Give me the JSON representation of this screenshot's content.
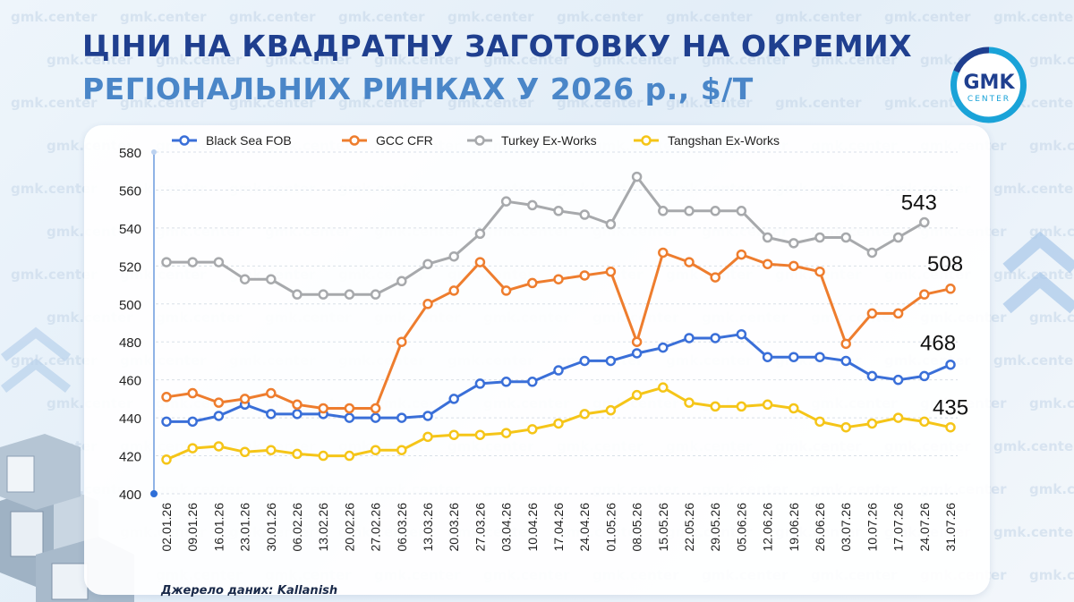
{
  "title": {
    "line1": "ЦІНИ НА КВАДРАТНУ ЗАГОТОВКУ НА ОКРЕМИХ",
    "line2": "РЕГІОНАЛЬНИХ РИНКАХ У 2026 р., $/Т"
  },
  "logo": {
    "line1": "GMK",
    "line2": "CENTER",
    "ring_color": "#1aa3d8",
    "text_color": "#1f3f8f"
  },
  "watermark": "gmk.center",
  "source": "Джерело даних: Kallanish",
  "chart_data": {
    "type": "line",
    "x": [
      "02.01.26",
      "09.01.26",
      "16.01.26",
      "23.01.26",
      "30.01.26",
      "06.02.26",
      "13.02.26",
      "20.02.26",
      "27.02.26",
      "06.03.26",
      "13.03.26",
      "20.03.26",
      "27.03.26",
      "03.04.26",
      "10.04.26",
      "17.04.26",
      "24.04.26",
      "01.05.26",
      "08.05.26",
      "15.05.26",
      "22.05.26",
      "29.05.26",
      "05.06.26",
      "12.06.26",
      "19.06.26",
      "26.06.26",
      "03.07.26",
      "10.07.26",
      "17.07.26",
      "24.07.26",
      "31.07.26"
    ],
    "ylim": [
      400,
      580
    ],
    "yticks": [
      400,
      420,
      440,
      460,
      480,
      500,
      520,
      540,
      560,
      580
    ],
    "grid": true,
    "legend_position": "top",
    "series": [
      {
        "name": "Black Sea FOB",
        "color": "#3a6fd8",
        "values": [
          438,
          438,
          441,
          447,
          442,
          442,
          442,
          440,
          440,
          440,
          441,
          450,
          458,
          459,
          459,
          465,
          470,
          470,
          474,
          477,
          482,
          482,
          484,
          472,
          472,
          472,
          470,
          462,
          460,
          462,
          468
        ],
        "end_label": "468"
      },
      {
        "name": "GCC CFR",
        "color": "#ee7d2e",
        "values": [
          451,
          453,
          448,
          450,
          453,
          447,
          445,
          445,
          445,
          480,
          500,
          507,
          522,
          507,
          511,
          513,
          515,
          517,
          480,
          527,
          522,
          514,
          526,
          521,
          520,
          517,
          479,
          495,
          495,
          505,
          508
        ],
        "end_label": "508"
      },
      {
        "name": "Turkey Ex-Works",
        "color": "#a7a9ac",
        "values": [
          522,
          522,
          522,
          513,
          513,
          505,
          505,
          505,
          505,
          512,
          521,
          525,
          537,
          554,
          552,
          549,
          547,
          542,
          567,
          549,
          549,
          549,
          549,
          535,
          532,
          535,
          535,
          527,
          535,
          543,
          null
        ],
        "end_label": "543"
      },
      {
        "name": "Tangshan Ex-Works",
        "color": "#f5c518",
        "values": [
          418,
          424,
          425,
          422,
          423,
          421,
          420,
          420,
          423,
          423,
          430,
          431,
          431,
          432,
          434,
          437,
          442,
          444,
          452,
          456,
          448,
          446,
          446,
          447,
          445,
          438,
          435,
          437,
          440,
          438,
          435
        ],
        "end_label": "435"
      }
    ]
  }
}
